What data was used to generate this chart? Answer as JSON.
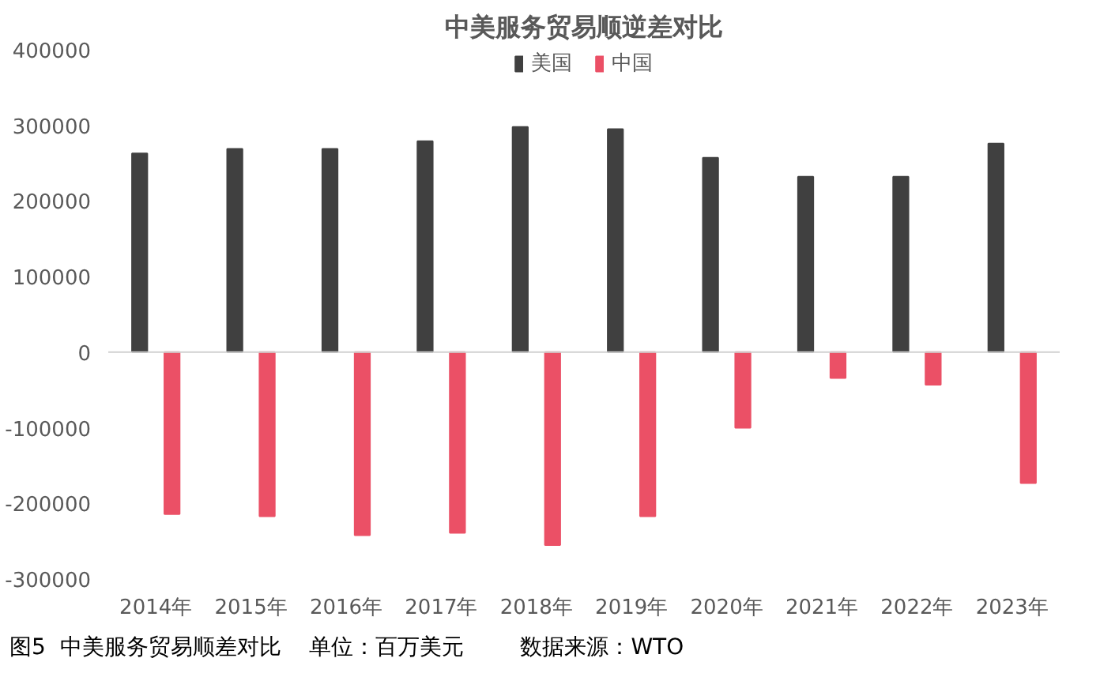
{
  "chart_data": {
    "type": "bar",
    "title": "中美服务贸易顺逆差对比",
    "categories": [
      "2014年",
      "2015年",
      "2016年",
      "2017年",
      "2018年",
      "2019年",
      "2020年",
      "2021年",
      "2022年",
      "2023年"
    ],
    "series": [
      {
        "name": "美国",
        "color": "#404040",
        "values": [
          263000,
          269000,
          269000,
          279000,
          298000,
          295000,
          257000,
          232000,
          232000,
          276000
        ]
      },
      {
        "name": "中国",
        "color": "#eb5066",
        "values": [
          -214000,
          -217000,
          -242000,
          -239000,
          -255000,
          -217000,
          -100000,
          -34000,
          -43000,
          -173000
        ]
      }
    ],
    "ylim": [
      -300000,
      400000
    ],
    "yticks": [
      -300000,
      -200000,
      -100000,
      0,
      100000,
      200000,
      300000,
      400000
    ],
    "grid": false,
    "legend": "top",
    "ref_lines": [
      {
        "axis": "y",
        "value": 0,
        "color": "#d0d0d0"
      }
    ],
    "annotations": [
      "图5  中美服务贸易顺差对比    单位：百万美元        数据来源：WTO"
    ]
  }
}
